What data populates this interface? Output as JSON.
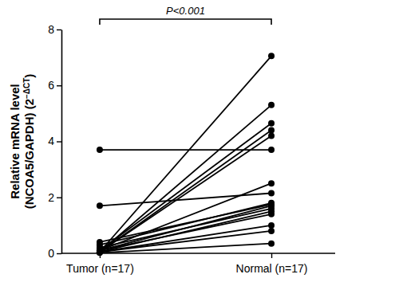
{
  "chart_data": {
    "type": "line",
    "categories": [
      "Tumor (n=17)",
      "Normal (n=17)"
    ],
    "ylabel": [
      "Relative mRNA level",
      "(NCOA5/GAPDH) (2",
      "−ΔCT",
      ")"
    ],
    "annotations": [
      "P<0.001"
    ],
    "ylim": [
      0,
      8
    ],
    "yticks": [
      0,
      2,
      4,
      6,
      8
    ],
    "grid": false,
    "color": "#000000",
    "marker": "circle",
    "series": [
      {
        "values": [
          0.05,
          7.05
        ]
      },
      {
        "values": [
          0.05,
          5.3
        ]
      },
      {
        "values": [
          0.1,
          4.65
        ]
      },
      {
        "values": [
          0.05,
          4.4
        ]
      },
      {
        "values": [
          0.05,
          4.2
        ]
      },
      {
        "values": [
          3.7,
          3.7
        ]
      },
      {
        "values": [
          0.1,
          2.5
        ]
      },
      {
        "values": [
          1.7,
          2.15
        ]
      },
      {
        "values": [
          0.3,
          1.8
        ]
      },
      {
        "values": [
          0.4,
          1.75
        ]
      },
      {
        "values": [
          0.1,
          1.7
        ]
      },
      {
        "values": [
          0.2,
          1.6
        ]
      },
      {
        "values": [
          0.05,
          1.5
        ]
      },
      {
        "values": [
          0.1,
          1.4
        ]
      },
      {
        "values": [
          0.05,
          1.0
        ]
      },
      {
        "values": [
          0.05,
          0.8
        ]
      },
      {
        "values": [
          0.02,
          0.35
        ]
      }
    ]
  }
}
